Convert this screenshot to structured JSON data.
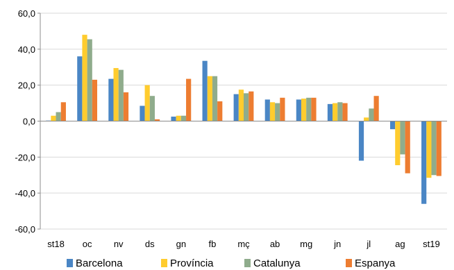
{
  "chart_data": {
    "type": "bar",
    "title": "",
    "xlabel": "",
    "ylabel": "",
    "categories": [
      "st18",
      "oc",
      "nv",
      "ds",
      "gn",
      "fb",
      "mç",
      "ab",
      "mg",
      "jn",
      "jl",
      "ag",
      "st19"
    ],
    "ylim": [
      -60,
      60
    ],
    "yticks": [
      -60,
      -40,
      -20,
      0,
      20,
      40,
      60
    ],
    "ytick_labels": [
      "-60,0",
      "-40,0",
      "-20,0",
      "0,0",
      "20,0",
      "40,0",
      "60,0"
    ],
    "grid": "horizontal",
    "legend_position": "bottom",
    "series": [
      {
        "name": "Barcelona",
        "color": "#4a86c5",
        "values": [
          0.3,
          36,
          23.5,
          8.5,
          2.5,
          33.5,
          15,
          12,
          12,
          9.5,
          -22,
          -4.5,
          -46
        ]
      },
      {
        "name": "Província",
        "color": "#ffcc2e",
        "values": [
          3,
          48,
          29.5,
          20,
          3,
          25,
          17.5,
          10.5,
          12.5,
          10,
          2,
          -24.5,
          -31.5
        ]
      },
      {
        "name": "Catalunya",
        "color": "#8fac8c",
        "values": [
          5,
          45.5,
          28.5,
          14,
          3,
          25,
          15.5,
          10,
          13,
          10.5,
          7,
          -18.5,
          -30
        ]
      },
      {
        "name": "Espanya",
        "color": "#ed7d31",
        "values": [
          10.5,
          23,
          16,
          1,
          23.5,
          11,
          16.5,
          13,
          13,
          10,
          14,
          -29,
          -30.5
        ]
      }
    ]
  }
}
